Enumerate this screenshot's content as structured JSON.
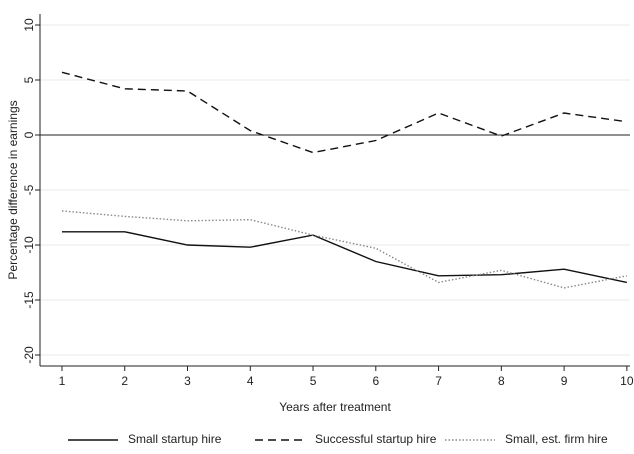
{
  "chart_data": {
    "type": "line",
    "x": [
      1,
      2,
      3,
      4,
      5,
      6,
      7,
      8,
      9,
      10
    ],
    "xlim": [
      0.65,
      10.05
    ],
    "xticks": [
      1,
      2,
      3,
      4,
      5,
      6,
      7,
      8,
      9,
      10
    ],
    "ylim": [
      -21,
      11
    ],
    "yticks": [
      -20,
      -15,
      -10,
      -5,
      0,
      5,
      10
    ],
    "xlabel": "Years after treatment",
    "ylabel": "Percentage difference in earnings",
    "grid": true,
    "reference_line": 0,
    "legend": "bottom",
    "series": [
      {
        "name": "Small startup hire",
        "color": "#111111",
        "dash": "solid",
        "values": [
          -8.8,
          -8.8,
          -10,
          -10.2,
          -9.1,
          -11.5,
          -12.8,
          -12.7,
          -12.2,
          -13.4
        ]
      },
      {
        "name": "Successful startup hire",
        "color": "#111111",
        "dash": "dashed",
        "values": [
          5.7,
          4.2,
          4.0,
          0.4,
          -1.6,
          -0.5,
          2.0,
          -0.1,
          2.0,
          1.2
        ]
      },
      {
        "name": "Small, est. firm hire",
        "color": "#888888",
        "dash": "dotted",
        "values": [
          -6.9,
          -7.4,
          -7.8,
          -7.7,
          -9.1,
          -10.3,
          -13.4,
          -12.3,
          -13.9,
          -12.8
        ]
      }
    ]
  }
}
